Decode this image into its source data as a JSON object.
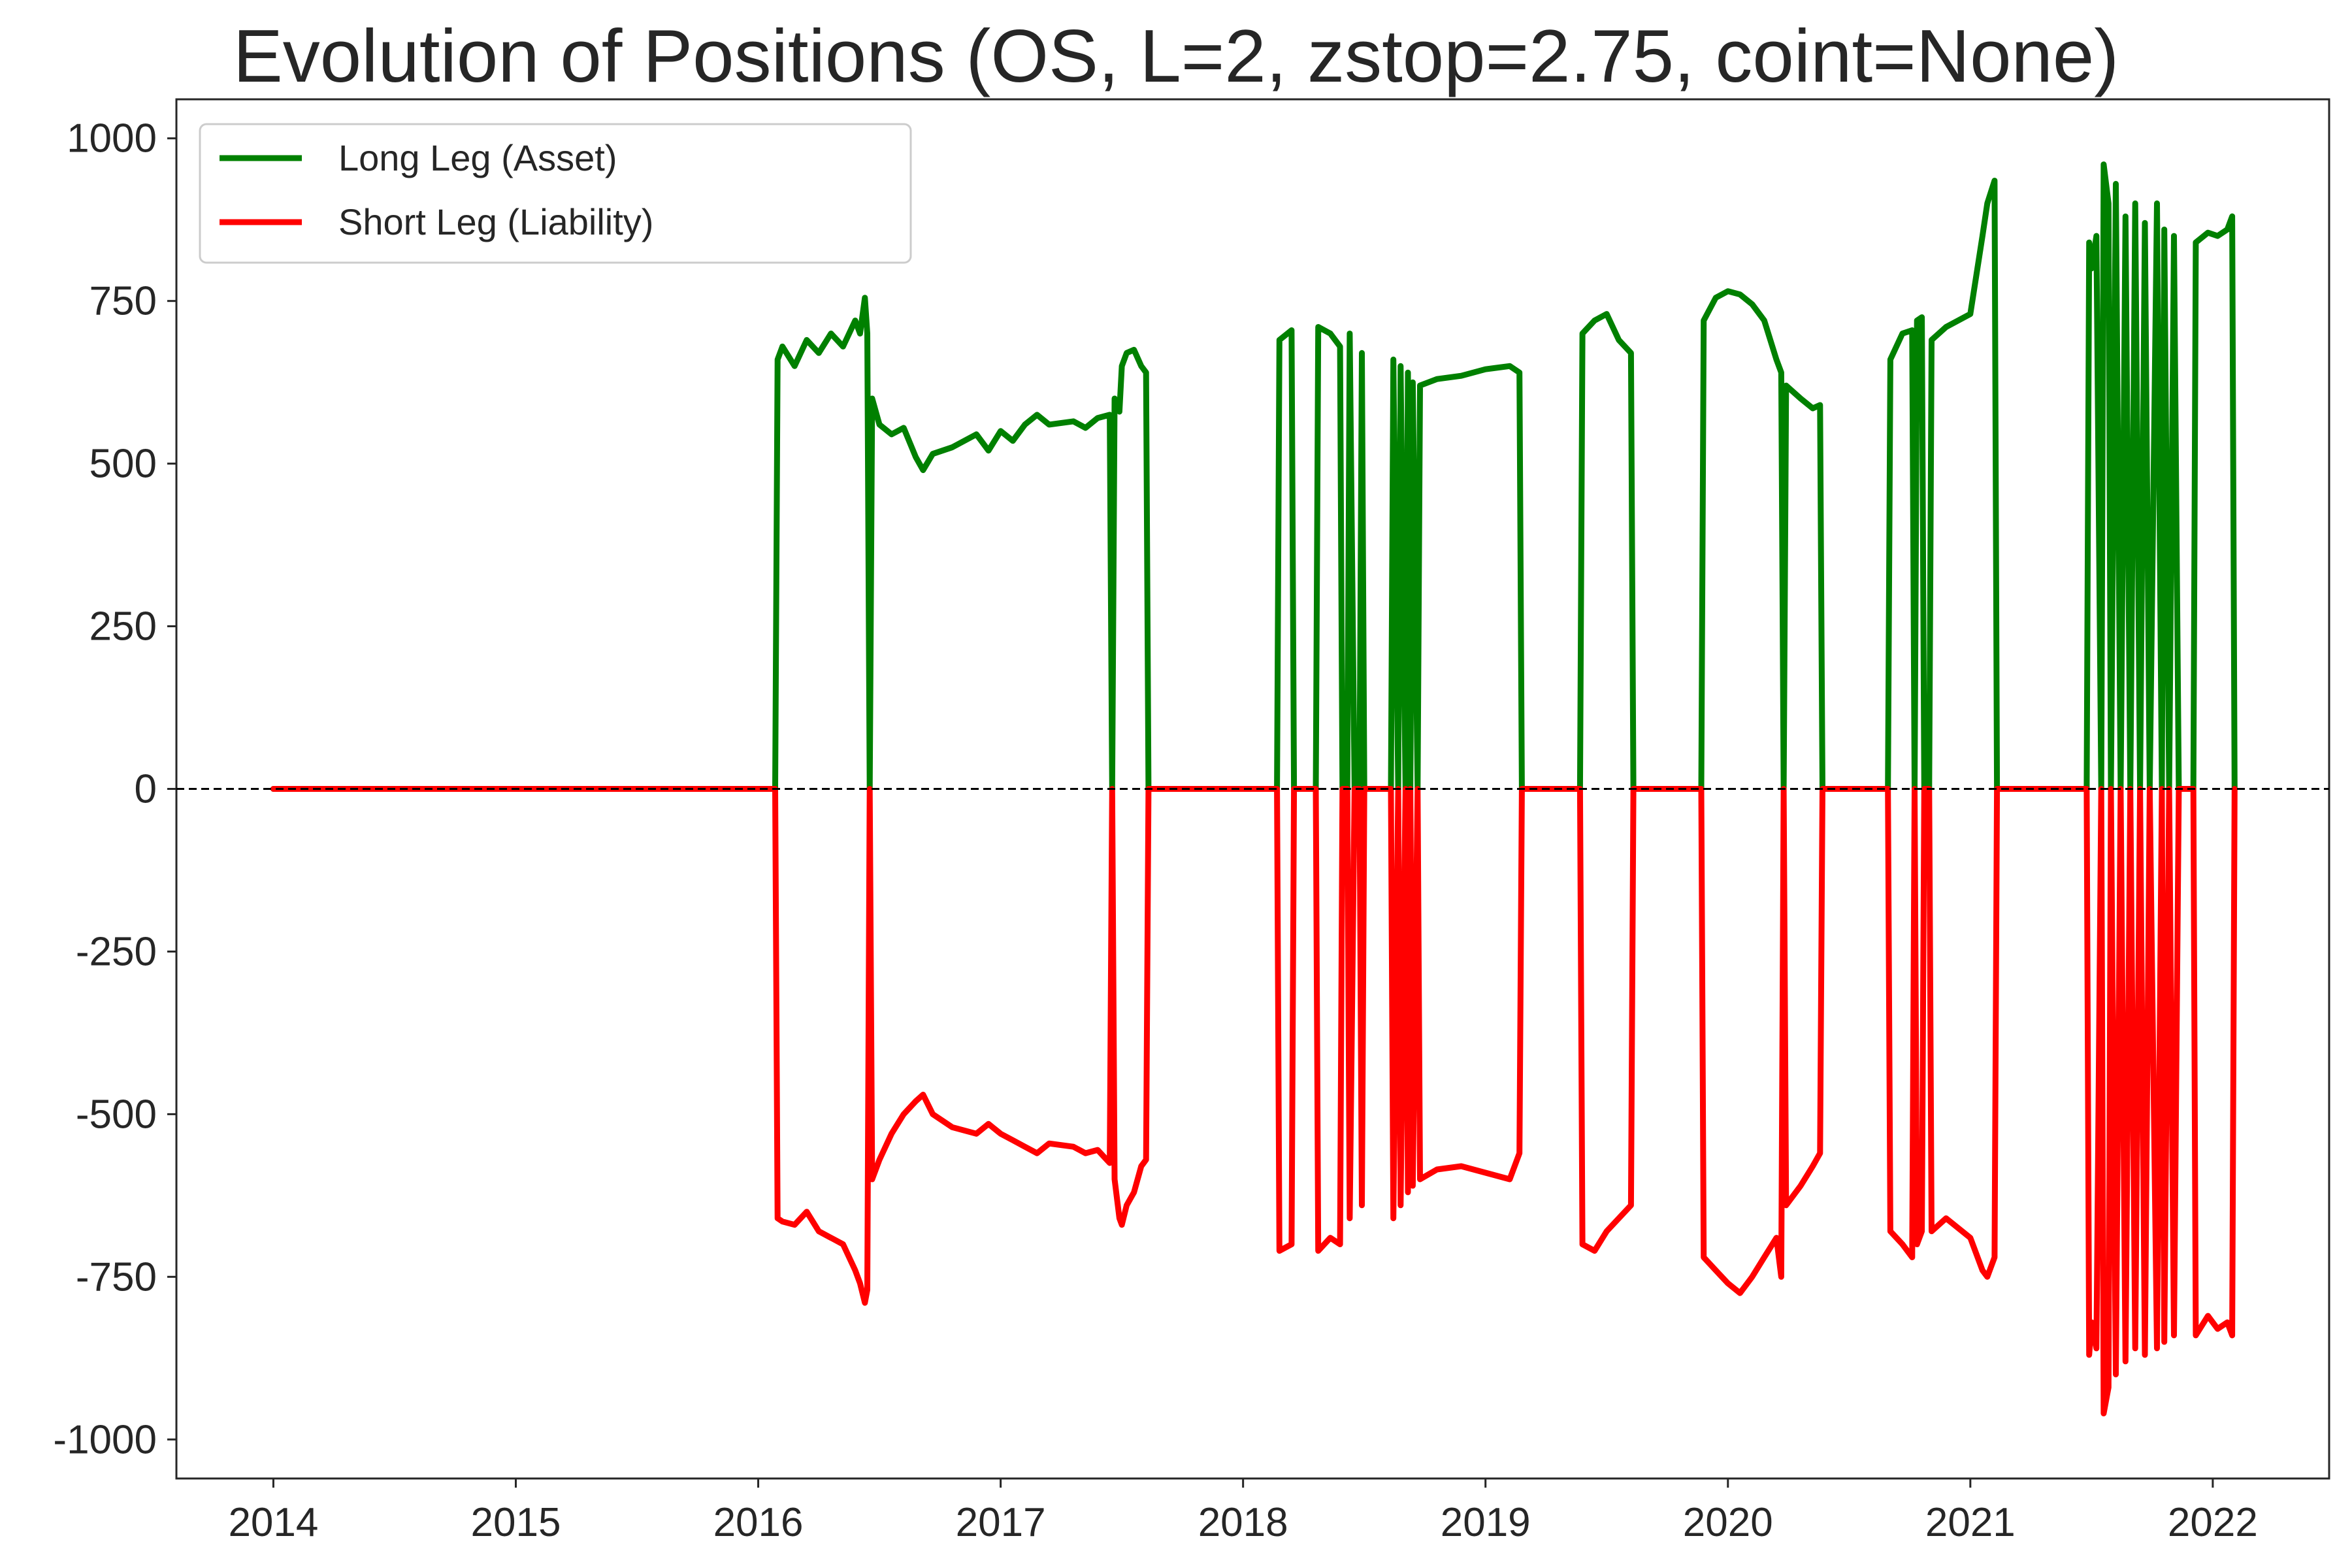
{
  "chart_data": {
    "type": "line",
    "title": "Evolution of Positions (OS, L=2, zstop=2.75, coint=None)",
    "xlabel": "",
    "ylabel": "",
    "xlim": [
      2013.6,
      2022.48
    ],
    "ylim": [
      -1060,
      1060
    ],
    "x_ticks": [
      2014,
      2015,
      2016,
      2017,
      2018,
      2019,
      2020,
      2021,
      2022
    ],
    "y_ticks": [
      1000,
      750,
      500,
      250,
      0,
      -250,
      -500,
      -750,
      -1000
    ],
    "grid": false,
    "zero_line": {
      "y": 0,
      "style": "dashed",
      "color": "#000000"
    },
    "legend": {
      "position": "upper-left"
    },
    "colors": {
      "long": "#008000",
      "short": "#ff0000"
    },
    "series": [
      {
        "name": "Long Leg (Asset)",
        "color": "#008000",
        "points": [
          [
            2014.0,
            0
          ],
          [
            2016.07,
            0
          ],
          [
            2016.08,
            660
          ],
          [
            2016.1,
            680
          ],
          [
            2016.15,
            650
          ],
          [
            2016.2,
            690
          ],
          [
            2016.25,
            670
          ],
          [
            2016.3,
            700
          ],
          [
            2016.35,
            680
          ],
          [
            2016.4,
            720
          ],
          [
            2016.42,
            700
          ],
          [
            2016.44,
            755
          ],
          [
            2016.45,
            700
          ],
          [
            2016.46,
            0
          ],
          [
            2016.47,
            600
          ],
          [
            2016.5,
            560
          ],
          [
            2016.55,
            545
          ],
          [
            2016.6,
            555
          ],
          [
            2016.65,
            510
          ],
          [
            2016.68,
            490
          ],
          [
            2016.72,
            515
          ],
          [
            2016.8,
            525
          ],
          [
            2016.9,
            545
          ],
          [
            2016.95,
            520
          ],
          [
            2017.0,
            550
          ],
          [
            2017.05,
            535
          ],
          [
            2017.1,
            560
          ],
          [
            2017.15,
            575
          ],
          [
            2017.2,
            560
          ],
          [
            2017.3,
            565
          ],
          [
            2017.35,
            555
          ],
          [
            2017.4,
            570
          ],
          [
            2017.45,
            575
          ],
          [
            2017.46,
            0
          ],
          [
            2017.47,
            600
          ],
          [
            2017.49,
            580
          ],
          [
            2017.5,
            650
          ],
          [
            2017.52,
            670
          ],
          [
            2017.55,
            675
          ],
          [
            2017.58,
            650
          ],
          [
            2017.6,
            640
          ],
          [
            2017.61,
            0
          ],
          [
            2018.14,
            0
          ],
          [
            2018.15,
            690
          ],
          [
            2018.2,
            705
          ],
          [
            2018.21,
            0
          ],
          [
            2018.3,
            0
          ],
          [
            2018.31,
            710
          ],
          [
            2018.36,
            700
          ],
          [
            2018.4,
            680
          ],
          [
            2018.41,
            0
          ],
          [
            2018.43,
            0
          ],
          [
            2018.44,
            700
          ],
          [
            2018.46,
            0
          ],
          [
            2018.48,
            0
          ],
          [
            2018.49,
            670
          ],
          [
            2018.5,
            0
          ],
          [
            2018.61,
            0
          ],
          [
            2018.62,
            660
          ],
          [
            2018.64,
            0
          ],
          [
            2018.65,
            650
          ],
          [
            2018.67,
            0
          ],
          [
            2018.68,
            640
          ],
          [
            2018.69,
            0
          ],
          [
            2018.7,
            625
          ],
          [
            2018.72,
            0
          ],
          [
            2018.73,
            620
          ],
          [
            2018.8,
            630
          ],
          [
            2018.9,
            635
          ],
          [
            2019.0,
            645
          ],
          [
            2019.1,
            650
          ],
          [
            2019.14,
            640
          ],
          [
            2019.15,
            0
          ],
          [
            2019.39,
            0
          ],
          [
            2019.4,
            700
          ],
          [
            2019.45,
            720
          ],
          [
            2019.5,
            730
          ],
          [
            2019.55,
            690
          ],
          [
            2019.6,
            670
          ],
          [
            2019.61,
            0
          ],
          [
            2019.89,
            0
          ],
          [
            2019.9,
            720
          ],
          [
            2019.95,
            755
          ],
          [
            2020.0,
            765
          ],
          [
            2020.05,
            760
          ],
          [
            2020.1,
            745
          ],
          [
            2020.15,
            720
          ],
          [
            2020.2,
            660
          ],
          [
            2020.22,
            640
          ],
          [
            2020.23,
            0
          ],
          [
            2020.24,
            620
          ],
          [
            2020.3,
            600
          ],
          [
            2020.35,
            585
          ],
          [
            2020.38,
            590
          ],
          [
            2020.39,
            0
          ],
          [
            2020.66,
            0
          ],
          [
            2020.67,
            660
          ],
          [
            2020.72,
            700
          ],
          [
            2020.76,
            705
          ],
          [
            2020.77,
            0
          ],
          [
            2020.78,
            720
          ],
          [
            2020.8,
            725
          ],
          [
            2020.81,
            0
          ],
          [
            2020.83,
            0
          ],
          [
            2020.84,
            690
          ],
          [
            2020.9,
            710
          ],
          [
            2021.0,
            730
          ],
          [
            2021.05,
            850
          ],
          [
            2021.07,
            900
          ],
          [
            2021.1,
            935
          ],
          [
            2021.11,
            0
          ],
          [
            2021.48,
            0
          ],
          [
            2021.49,
            840
          ],
          [
            2021.5,
            800
          ],
          [
            2021.52,
            850
          ],
          [
            2021.54,
            0
          ],
          [
            2021.55,
            960
          ],
          [
            2021.57,
            900
          ],
          [
            2021.58,
            0
          ],
          [
            2021.6,
            930
          ],
          [
            2021.62,
            0
          ],
          [
            2021.64,
            880
          ],
          [
            2021.66,
            0
          ],
          [
            2021.68,
            900
          ],
          [
            2021.7,
            0
          ],
          [
            2021.72,
            870
          ],
          [
            2021.74,
            0
          ],
          [
            2021.77,
            900
          ],
          [
            2021.79,
            0
          ],
          [
            2021.8,
            860
          ],
          [
            2021.82,
            0
          ],
          [
            2021.84,
            850
          ],
          [
            2021.86,
            0
          ],
          [
            2021.92,
            0
          ],
          [
            2021.93,
            840
          ],
          [
            2021.98,
            855
          ],
          [
            2022.02,
            850
          ],
          [
            2022.06,
            860
          ],
          [
            2022.08,
            880
          ],
          [
            2022.09,
            0
          ]
        ]
      },
      {
        "name": "Short Leg (Liability)",
        "color": "#ff0000",
        "points": [
          [
            2014.0,
            0
          ],
          [
            2016.07,
            0
          ],
          [
            2016.08,
            -660
          ],
          [
            2016.1,
            -665
          ],
          [
            2016.15,
            -670
          ],
          [
            2016.2,
            -650
          ],
          [
            2016.25,
            -680
          ],
          [
            2016.3,
            -690
          ],
          [
            2016.35,
            -700
          ],
          [
            2016.4,
            -740
          ],
          [
            2016.42,
            -760
          ],
          [
            2016.44,
            -790
          ],
          [
            2016.45,
            -770
          ],
          [
            2016.46,
            0
          ],
          [
            2016.47,
            -600
          ],
          [
            2016.5,
            -570
          ],
          [
            2016.55,
            -530
          ],
          [
            2016.6,
            -500
          ],
          [
            2016.65,
            -480
          ],
          [
            2016.68,
            -470
          ],
          [
            2016.72,
            -500
          ],
          [
            2016.8,
            -520
          ],
          [
            2016.9,
            -530
          ],
          [
            2016.95,
            -515
          ],
          [
            2017.0,
            -530
          ],
          [
            2017.05,
            -540
          ],
          [
            2017.1,
            -550
          ],
          [
            2017.15,
            -560
          ],
          [
            2017.2,
            -545
          ],
          [
            2017.3,
            -550
          ],
          [
            2017.35,
            -560
          ],
          [
            2017.4,
            -555
          ],
          [
            2017.45,
            -575
          ],
          [
            2017.46,
            0
          ],
          [
            2017.47,
            -600
          ],
          [
            2017.49,
            -660
          ],
          [
            2017.5,
            -670
          ],
          [
            2017.52,
            -640
          ],
          [
            2017.55,
            -620
          ],
          [
            2017.58,
            -580
          ],
          [
            2017.6,
            -570
          ],
          [
            2017.61,
            0
          ],
          [
            2018.14,
            0
          ],
          [
            2018.15,
            -710
          ],
          [
            2018.2,
            -700
          ],
          [
            2018.21,
            0
          ],
          [
            2018.3,
            0
          ],
          [
            2018.31,
            -710
          ],
          [
            2018.36,
            -690
          ],
          [
            2018.4,
            -700
          ],
          [
            2018.41,
            0
          ],
          [
            2018.43,
            0
          ],
          [
            2018.44,
            -660
          ],
          [
            2018.46,
            0
          ],
          [
            2018.48,
            0
          ],
          [
            2018.49,
            -640
          ],
          [
            2018.5,
            0
          ],
          [
            2018.61,
            0
          ],
          [
            2018.62,
            -660
          ],
          [
            2018.64,
            0
          ],
          [
            2018.65,
            -640
          ],
          [
            2018.67,
            0
          ],
          [
            2018.68,
            -620
          ],
          [
            2018.69,
            0
          ],
          [
            2018.7,
            -610
          ],
          [
            2018.72,
            0
          ],
          [
            2018.73,
            -600
          ],
          [
            2018.8,
            -585
          ],
          [
            2018.9,
            -580
          ],
          [
            2019.0,
            -590
          ],
          [
            2019.1,
            -600
          ],
          [
            2019.14,
            -560
          ],
          [
            2019.15,
            0
          ],
          [
            2019.39,
            0
          ],
          [
            2019.4,
            -700
          ],
          [
            2019.45,
            -710
          ],
          [
            2019.5,
            -680
          ],
          [
            2019.55,
            -660
          ],
          [
            2019.6,
            -640
          ],
          [
            2019.61,
            0
          ],
          [
            2019.89,
            0
          ],
          [
            2019.9,
            -720
          ],
          [
            2019.95,
            -740
          ],
          [
            2020.0,
            -760
          ],
          [
            2020.05,
            -775
          ],
          [
            2020.1,
            -750
          ],
          [
            2020.15,
            -720
          ],
          [
            2020.2,
            -690
          ],
          [
            2020.22,
            -750
          ],
          [
            2020.23,
            0
          ],
          [
            2020.24,
            -640
          ],
          [
            2020.3,
            -610
          ],
          [
            2020.35,
            -580
          ],
          [
            2020.38,
            -560
          ],
          [
            2020.39,
            0
          ],
          [
            2020.66,
            0
          ],
          [
            2020.67,
            -680
          ],
          [
            2020.72,
            -700
          ],
          [
            2020.76,
            -720
          ],
          [
            2020.77,
            0
          ],
          [
            2020.78,
            -700
          ],
          [
            2020.8,
            -680
          ],
          [
            2020.81,
            0
          ],
          [
            2020.83,
            0
          ],
          [
            2020.84,
            -680
          ],
          [
            2020.9,
            -660
          ],
          [
            2021.0,
            -690
          ],
          [
            2021.05,
            -740
          ],
          [
            2021.07,
            -750
          ],
          [
            2021.1,
            -720
          ],
          [
            2021.11,
            0
          ],
          [
            2021.48,
            0
          ],
          [
            2021.49,
            -870
          ],
          [
            2021.5,
            -820
          ],
          [
            2021.52,
            -860
          ],
          [
            2021.54,
            0
          ],
          [
            2021.55,
            -960
          ],
          [
            2021.57,
            -920
          ],
          [
            2021.58,
            0
          ],
          [
            2021.6,
            -900
          ],
          [
            2021.62,
            0
          ],
          [
            2021.64,
            -880
          ],
          [
            2021.66,
            0
          ],
          [
            2021.68,
            -860
          ],
          [
            2021.7,
            0
          ],
          [
            2021.72,
            -870
          ],
          [
            2021.74,
            0
          ],
          [
            2021.77,
            -860
          ],
          [
            2021.79,
            0
          ],
          [
            2021.8,
            -850
          ],
          [
            2021.82,
            0
          ],
          [
            2021.84,
            -840
          ],
          [
            2021.86,
            0
          ],
          [
            2021.92,
            0
          ],
          [
            2021.93,
            -840
          ],
          [
            2021.98,
            -810
          ],
          [
            2022.02,
            -830
          ],
          [
            2022.06,
            -820
          ],
          [
            2022.08,
            -840
          ],
          [
            2022.09,
            0
          ]
        ]
      }
    ]
  }
}
